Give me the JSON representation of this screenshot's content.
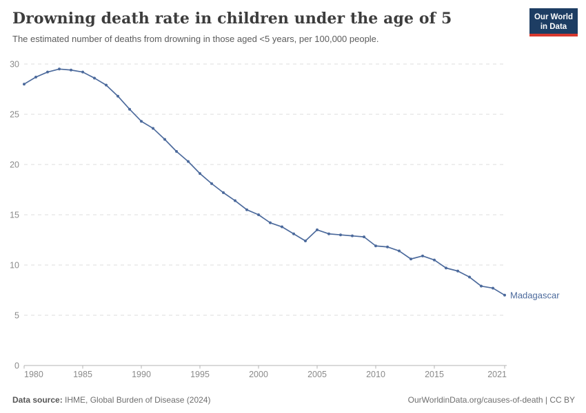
{
  "header": {
    "title": "Drowning death rate in children under the age of 5",
    "subtitle": "The estimated number of deaths from drowning in those aged <5 years, per 100,000 people.",
    "logo": {
      "line1": "Our World",
      "line2": "in Data"
    }
  },
  "footer": {
    "source_label": "Data source:",
    "source_value": " IHME, Global Burden of Disease (2024)",
    "credit": "OurWorldinData.org/causes-of-death | CC BY"
  },
  "chart_data": {
    "type": "line",
    "title": "Drowning death rate in children under the age of 5",
    "subtitle": "The estimated number of deaths from drowning in those aged <5 years, per 100,000 people.",
    "xlabel": "",
    "ylabel": "",
    "ylim": [
      0,
      30
    ],
    "yticks": [
      0,
      5,
      10,
      15,
      20,
      25,
      30
    ],
    "xticks": [
      1980,
      1985,
      1990,
      1995,
      2000,
      2005,
      2010,
      2015,
      2021
    ],
    "grid": "dashed-horizontal",
    "legend_position": "end-of-line-label",
    "series": [
      {
        "name": "Madagascar",
        "color": "#4c6a9c",
        "x": [
          1980,
          1981,
          1982,
          1983,
          1984,
          1985,
          1986,
          1987,
          1988,
          1989,
          1990,
          1991,
          1992,
          1993,
          1994,
          1995,
          1996,
          1997,
          1998,
          1999,
          2000,
          2001,
          2002,
          2003,
          2004,
          2005,
          2006,
          2007,
          2008,
          2009,
          2010,
          2011,
          2012,
          2013,
          2014,
          2015,
          2016,
          2017,
          2018,
          2019,
          2020,
          2021
        ],
        "values": [
          28.0,
          28.7,
          29.2,
          29.5,
          29.4,
          29.2,
          28.6,
          27.9,
          26.8,
          25.5,
          24.3,
          23.6,
          22.5,
          21.3,
          20.3,
          19.1,
          18.1,
          17.2,
          16.4,
          15.5,
          15.0,
          14.2,
          13.8,
          13.1,
          12.4,
          13.5,
          13.1,
          13.0,
          12.9,
          12.8,
          11.9,
          11.8,
          11.4,
          10.6,
          10.9,
          10.5,
          9.7,
          9.4,
          8.8,
          7.9,
          7.7,
          7.0
        ]
      }
    ]
  },
  "colors": {
    "line": "#4c6a9c",
    "grid": "#dddddd",
    "axis": "#b3b3b3",
    "tick_text": "#8a8a8a",
    "logo_bg": "#1d3d63",
    "logo_accent": "#d7382e"
  }
}
